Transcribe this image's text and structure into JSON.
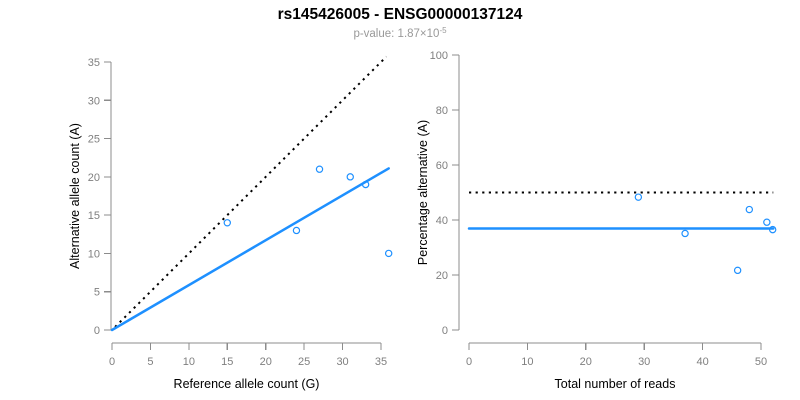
{
  "header": {
    "title": "rs145426005 - ENSG00000137124",
    "subtitle_prefix": "p-value: 1.87×10",
    "subtitle_exponent": "-5"
  },
  "colors": {
    "accent_blue": "#1E90FF",
    "line_black": "#000000",
    "axis_gray": "#8C8C8C",
    "tick_label_gray": "#7F7F7F",
    "axis_title_black": "#000000",
    "subtitle_gray": "#999999"
  },
  "chart_data": [
    {
      "type": "scatter",
      "panel": "left",
      "xlabel": "Reference allele count (G)",
      "ylabel": "Alternative allele count (A)",
      "xlim": [
        0,
        36.2
      ],
      "ylim": [
        0,
        35.9
      ],
      "xticks": [
        0,
        5,
        10,
        15,
        20,
        25,
        30,
        35
      ],
      "yticks": [
        0,
        5,
        10,
        15,
        20,
        25,
        30,
        35
      ],
      "grid": false,
      "points": [
        [
          15,
          14
        ],
        [
          24,
          13
        ],
        [
          27,
          21
        ],
        [
          31,
          20
        ],
        [
          33,
          19
        ],
        [
          36,
          10
        ]
      ],
      "lines": [
        {
          "name": "identity-line",
          "style": "dotted",
          "color": "#000000",
          "from": [
            0.4,
            0.4
          ],
          "to": [
            35.7,
            35.7
          ]
        },
        {
          "name": "fit-line",
          "style": "solid",
          "color": "#1E90FF",
          "from": [
            0,
            0
          ],
          "to": [
            36,
            21.1
          ]
        }
      ]
    },
    {
      "type": "scatter",
      "panel": "right",
      "xlabel": "Total number of reads",
      "ylabel": "Percentage alternative (A)",
      "xlim": [
        0,
        52.1
      ],
      "ylim": [
        0,
        100
      ],
      "xticks": [
        0,
        10,
        20,
        30,
        40,
        50
      ],
      "yticks": [
        0,
        20,
        40,
        60,
        80,
        100
      ],
      "grid": false,
      "points": [
        [
          29,
          48.3
        ],
        [
          37,
          35.1
        ],
        [
          46,
          21.7
        ],
        [
          48,
          43.8
        ],
        [
          51,
          39.2
        ],
        [
          52,
          36.5
        ]
      ],
      "lines": [
        {
          "name": "expected-percentage-line",
          "style": "dotted",
          "color": "#000000",
          "y": 50
        },
        {
          "name": "observed-percentage-line",
          "style": "solid",
          "color": "#1E90FF",
          "y": 36.9
        }
      ]
    }
  ]
}
